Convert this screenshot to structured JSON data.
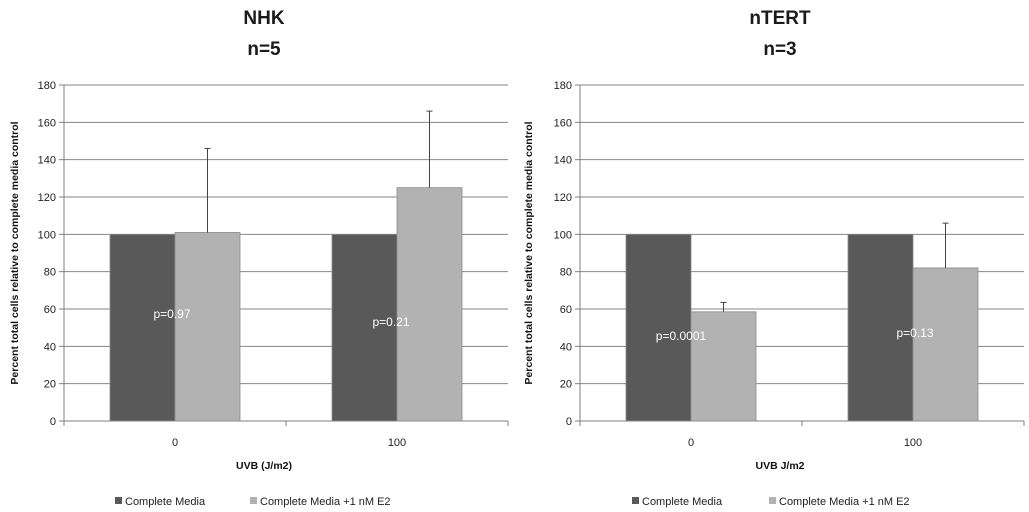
{
  "chart_data": [
    {
      "type": "bar",
      "title": "NHK",
      "subtitle": "n=5",
      "xlabel": "UVB (J/m2)",
      "ylabel": "Percent total cells relative to complete media control",
      "categories": [
        "0",
        "100"
      ],
      "ylim": [
        0,
        180
      ],
      "yticks": [
        0,
        20,
        40,
        60,
        80,
        100,
        120,
        140,
        160,
        180
      ],
      "grid": true,
      "legend_position": "bottom",
      "series": [
        {
          "name": "Complete Media",
          "values": [
            100,
            100
          ],
          "errors": [
            0,
            0
          ],
          "color": "#595959"
        },
        {
          "name": "Complete Media +1 nM E2",
          "values": [
            101,
            125
          ],
          "errors": [
            45,
            41
          ],
          "color": "#b2b2b2"
        }
      ],
      "annotations": [
        "p=0.97",
        "p=0.21"
      ]
    },
    {
      "type": "bar",
      "title": "nTERT",
      "subtitle": "n=3",
      "xlabel": "UVB J/m2",
      "ylabel": "Percent total cells relative to complete media control",
      "categories": [
        "0",
        "100"
      ],
      "ylim": [
        0,
        180
      ],
      "yticks": [
        0,
        20,
        40,
        60,
        80,
        100,
        120,
        140,
        160,
        180
      ],
      "grid": true,
      "legend_position": "bottom",
      "series": [
        {
          "name": "Complete Media",
          "values": [
            100,
            100
          ],
          "errors": [
            0,
            0
          ],
          "color": "#595959"
        },
        {
          "name": "Complete Media +1 nM E2",
          "values": [
            58.5,
            82
          ],
          "errors": [
            5,
            24
          ],
          "color": "#b2b2b2"
        }
      ],
      "annotations": [
        "p=0.0001",
        "p=0.13"
      ]
    }
  ]
}
